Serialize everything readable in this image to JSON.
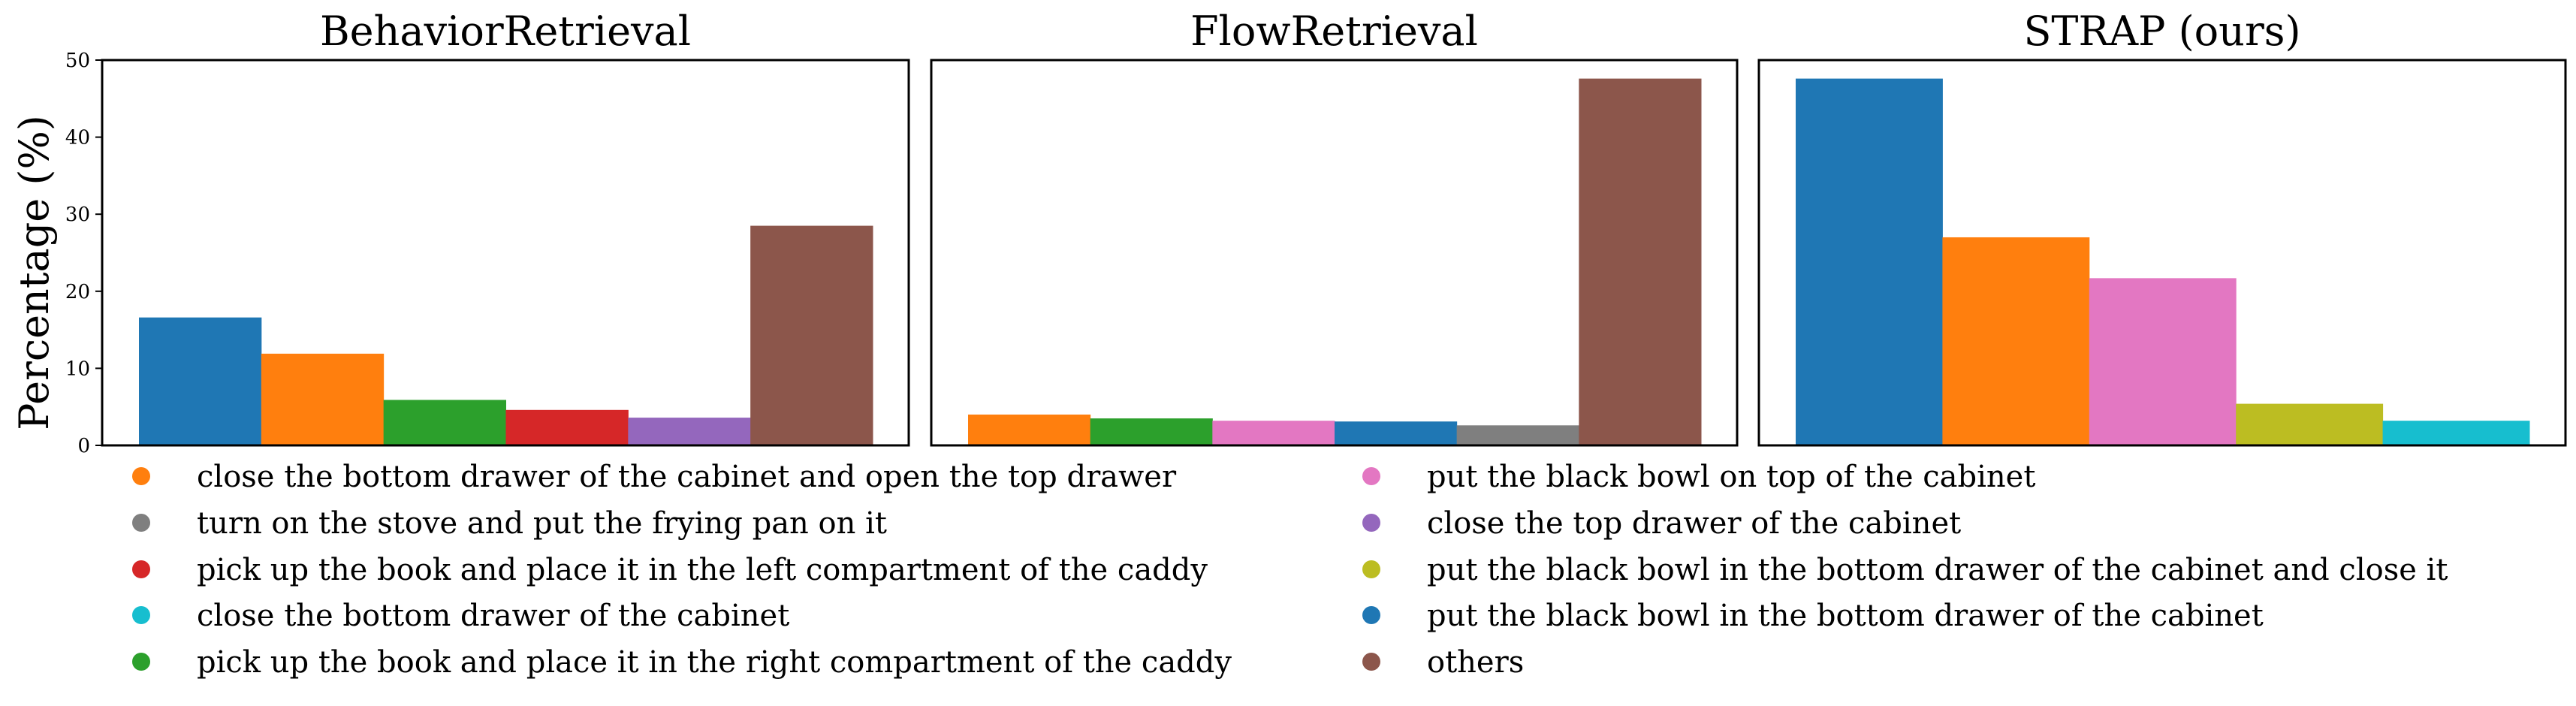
{
  "chart_data": {
    "type": "bar",
    "ylabel": "Percentage (%)",
    "ylim": [
      0,
      50
    ],
    "yticks": [
      0,
      10,
      20,
      30,
      40,
      50
    ],
    "grid": false,
    "legend_placement": "bottom, two columns",
    "legend": [
      {
        "label": "close the bottom drawer of the cabinet and open the top drawer",
        "color": "#ff7f0e"
      },
      {
        "label": "turn on the stove and put the frying pan on it",
        "color": "#7f7f7f"
      },
      {
        "label": "pick up the book and place it in the left compartment of the caddy",
        "color": "#d62728"
      },
      {
        "label": "close the bottom drawer of the cabinet",
        "color": "#17becf"
      },
      {
        "label": "pick up the book and place it in the right compartment of the caddy",
        "color": "#2ca02c"
      },
      {
        "label": "put the black bowl on top of the cabinet",
        "color": "#e377c2"
      },
      {
        "label": "close the top drawer of the cabinet",
        "color": "#9467bd"
      },
      {
        "label": "put the black bowl in the bottom drawer of the cabinet and close it",
        "color": "#bcbd22"
      },
      {
        "label": "put the black bowl in the bottom drawer of the cabinet",
        "color": "#1f77b4"
      },
      {
        "label": "others",
        "color": "#8c564b"
      }
    ],
    "panels": [
      {
        "title": "BehaviorRetrieval",
        "bars": [
          {
            "category": "put the black bowl in the bottom drawer of the cabinet",
            "value": 16.6,
            "color": "#1f77b4"
          },
          {
            "category": "close the bottom drawer of the cabinet and open the top drawer",
            "value": 11.9,
            "color": "#ff7f0e"
          },
          {
            "category": "pick up the book and place it in the right compartment of the caddy",
            "value": 5.9,
            "color": "#2ca02c"
          },
          {
            "category": "pick up the book and place it in the left compartment of the caddy",
            "value": 4.6,
            "color": "#d62728"
          },
          {
            "category": "close the top drawer of the cabinet",
            "value": 3.6,
            "color": "#9467bd"
          },
          {
            "category": "others",
            "value": 28.5,
            "color": "#8c564b"
          }
        ]
      },
      {
        "title": "FlowRetrieval",
        "bars": [
          {
            "category": "close the bottom drawer of the cabinet and open the top drawer",
            "value": 4.0,
            "color": "#ff7f0e"
          },
          {
            "category": "pick up the book and place it in the right compartment of the caddy",
            "value": 3.5,
            "color": "#2ca02c"
          },
          {
            "category": "put the black bowl on top of the cabinet",
            "value": 3.2,
            "color": "#e377c2"
          },
          {
            "category": "put the black bowl in the bottom drawer of the cabinet",
            "value": 3.1,
            "color": "#1f77b4"
          },
          {
            "category": "turn on the stove and put the frying pan on it",
            "value": 2.6,
            "color": "#7f7f7f"
          },
          {
            "category": "others",
            "value": 47.6,
            "color": "#8c564b"
          }
        ]
      },
      {
        "title": "STRAP (ours)",
        "bars": [
          {
            "category": "put the black bowl in the bottom drawer of the cabinet",
            "value": 47.6,
            "color": "#1f77b4"
          },
          {
            "category": "close the bottom drawer of the cabinet and open the top drawer",
            "value": 27.0,
            "color": "#ff7f0e"
          },
          {
            "category": "put the black bowl on top of the cabinet",
            "value": 21.7,
            "color": "#e377c2"
          },
          {
            "category": "put the black bowl in the bottom drawer of the cabinet and close it",
            "value": 5.4,
            "color": "#bcbd22"
          },
          {
            "category": "close the bottom drawer of the cabinet",
            "value": 3.2,
            "color": "#17becf"
          }
        ]
      }
    ]
  }
}
